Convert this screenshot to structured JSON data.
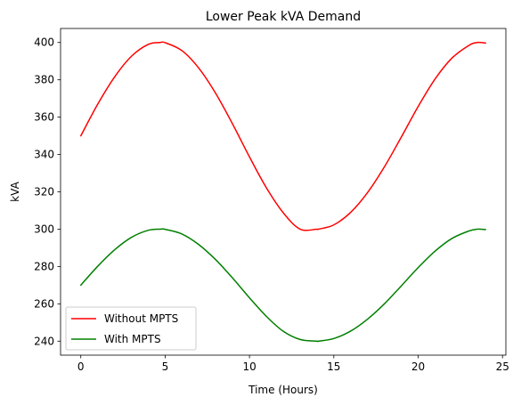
{
  "chart_data": {
    "type": "line",
    "title": "Lower Peak kVA Demand",
    "xlabel": "Time (Hours)",
    "ylabel": "kVA",
    "xlim": [
      -1.2,
      25.2
    ],
    "ylim": [
      232.5,
      407.5
    ],
    "xticks": [
      0,
      5,
      10,
      15,
      20,
      25
    ],
    "yticks": [
      240,
      260,
      280,
      300,
      320,
      340,
      360,
      380,
      400
    ],
    "grid": false,
    "legend_position": "lower-left",
    "series": [
      {
        "name": "Without MPTS",
        "color": "#ff0000",
        "x": [
          0,
          1,
          2,
          3,
          4,
          4.7,
          5,
          6,
          7,
          8,
          9,
          10,
          11,
          12,
          13,
          14,
          14.1,
          15,
          16,
          17,
          18,
          19,
          20,
          21,
          22,
          23,
          23.5,
          24
        ],
        "y": [
          350,
          366.9,
          381.5,
          392.6,
          399.0,
          400,
          399.9,
          395.6,
          386.2,
          372.7,
          356.3,
          338.7,
          322.2,
          308.8,
          300.0,
          300.0,
          300,
          302.3,
          309.0,
          319.6,
          333.4,
          349.3,
          365.7,
          380.4,
          391.6,
          398.4,
          400.0,
          399.7
        ]
      },
      {
        "name": "With MPTS",
        "color": "#008000",
        "x": [
          0,
          1,
          2,
          3,
          4,
          4.7,
          5,
          6,
          7,
          8,
          9,
          10,
          11,
          12,
          13,
          14,
          14.1,
          15,
          16,
          17,
          18,
          19,
          20,
          21,
          22,
          23,
          23.5,
          24
        ],
        "y": [
          270,
          280.1,
          288.9,
          295.6,
          299.4,
          300,
          299.9,
          297.4,
          291.7,
          283.6,
          273.8,
          263.2,
          253.3,
          245.3,
          240.9,
          240.0,
          240,
          241.4,
          245.4,
          251.8,
          260.0,
          269.6,
          279.4,
          288.2,
          295.0,
          299.0,
          300.0,
          299.8
        ]
      }
    ]
  }
}
